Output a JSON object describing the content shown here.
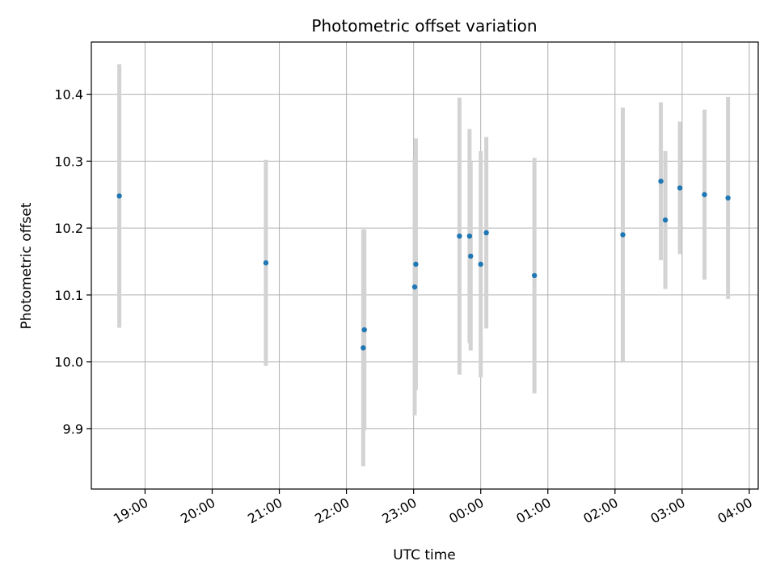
{
  "chart_data": {
    "type": "scatter",
    "title": "Photometric offset variation",
    "xlabel": "UTC time",
    "ylabel": "Photometric offset",
    "x_tick_labels": [
      "19:00",
      "20:00",
      "21:00",
      "22:00",
      "23:00",
      "00:00",
      "01:00",
      "02:00",
      "03:00",
      "04:00"
    ],
    "y_ticks": [
      9.9,
      10.0,
      10.1,
      10.2,
      10.3,
      10.4
    ],
    "y_tick_labels": [
      "9.9",
      "10.0",
      "10.1",
      "10.2",
      "10.3",
      "10.4"
    ],
    "xlim": [
      "18:12",
      "04:08"
    ],
    "ylim": [
      9.81,
      10.478
    ],
    "grid": true,
    "colors": {
      "marker": "#1f77b4",
      "errorbar": "#d3d3d3",
      "grid": "#b0b0b0"
    },
    "points": [
      {
        "x": "18:37",
        "y": 10.248,
        "err": 0.197
      },
      {
        "x": "20:48",
        "y": 10.148,
        "err": 0.154
      },
      {
        "x": "22:15",
        "y": 10.021,
        "err": 0.177
      },
      {
        "x": "22:16",
        "y": 10.048,
        "err": 0.15
      },
      {
        "x": "23:01",
        "y": 10.112,
        "err": 0.192
      },
      {
        "x": "23:02",
        "y": 10.146,
        "err": 0.188
      },
      {
        "x": "23:41",
        "y": 10.188,
        "err": 0.207
      },
      {
        "x": "23:50",
        "y": 10.188,
        "err": 0.16
      },
      {
        "x": "23:51",
        "y": 10.158,
        "err": 0.141
      },
      {
        "x": "00:00",
        "y": 10.146,
        "err": 0.169
      },
      {
        "x": "00:05",
        "y": 10.193,
        "err": 0.143
      },
      {
        "x": "00:48",
        "y": 10.129,
        "err": 0.176
      },
      {
        "x": "02:07",
        "y": 10.19,
        "err": 0.19
      },
      {
        "x": "02:41",
        "y": 10.27,
        "err": 0.118
      },
      {
        "x": "02:45",
        "y": 10.212,
        "err": 0.103
      },
      {
        "x": "02:58",
        "y": 10.26,
        "err": 0.099
      },
      {
        "x": "03:20",
        "y": 10.25,
        "err": 0.127
      },
      {
        "x": "03:41",
        "y": 10.245,
        "err": 0.151
      }
    ]
  }
}
